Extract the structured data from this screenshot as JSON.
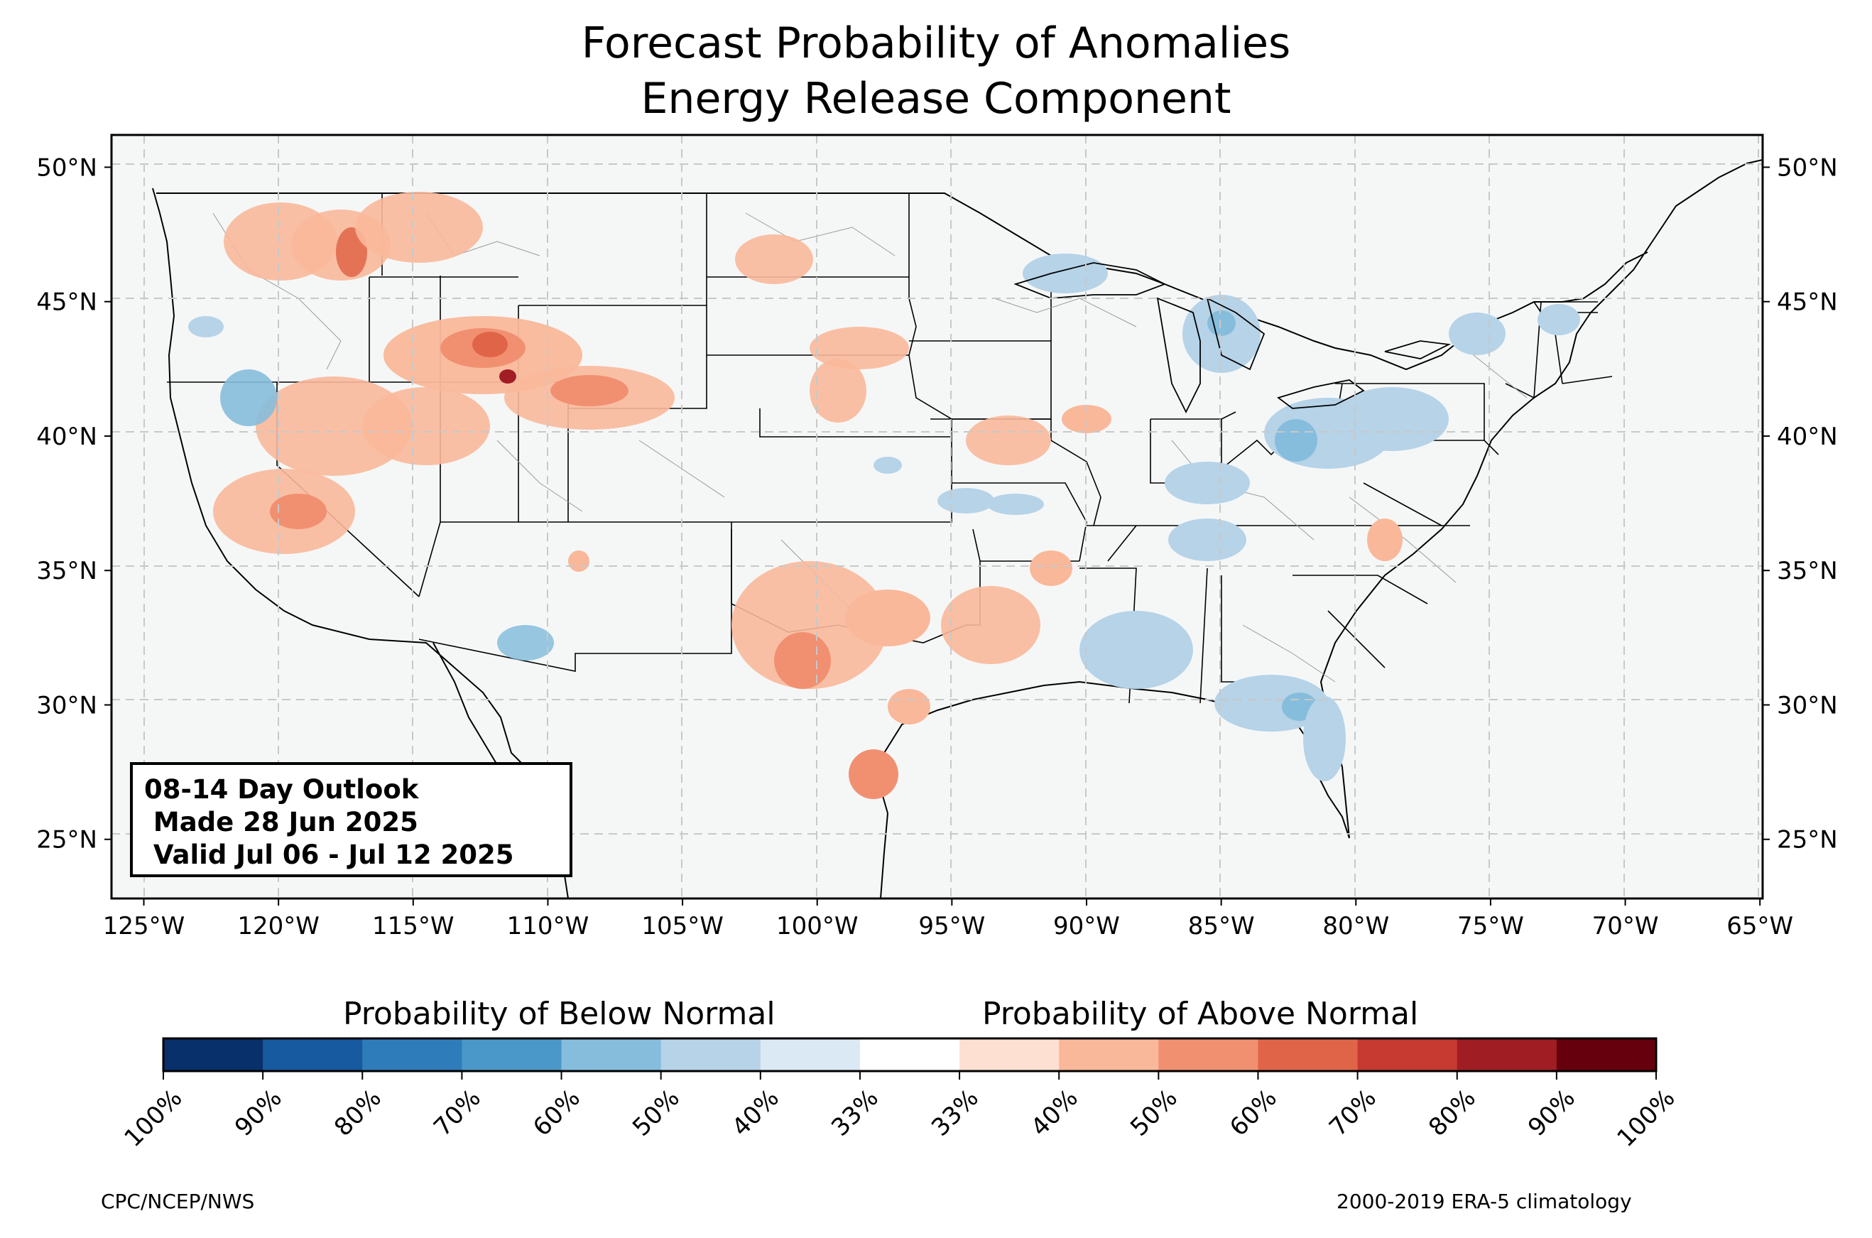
{
  "title": {
    "line1": "Forecast Probability of Anomalies",
    "line2": "Energy Release Component"
  },
  "axes": {
    "lat_labels": [
      "50°N",
      "45°N",
      "40°N",
      "35°N",
      "30°N",
      "25°N"
    ],
    "lat_values": [
      50,
      45,
      40,
      35,
      30,
      25
    ],
    "lon_labels": [
      "125°W",
      "120°W",
      "115°W",
      "110°W",
      "105°W",
      "100°W",
      "95°W",
      "90°W",
      "85°W",
      "80°W",
      "75°W",
      "70°W",
      "65°W"
    ],
    "lon_values": [
      -125,
      -120,
      -115,
      -110,
      -105,
      -100,
      -95,
      -90,
      -85,
      -80,
      -75,
      -70,
      -65
    ],
    "lon_range": [
      -126.2,
      -64.9
    ],
    "lat_range": [
      22.8,
      51.2
    ],
    "grid": "dashed"
  },
  "outlook_box": {
    "line1": "08-14 Day Outlook",
    "line2": " Made 28 Jun 2025",
    "line3": " Valid Jul 06 - Jul 12 2025"
  },
  "colorbar": {
    "below_label": "Probability of Below Normal",
    "above_label": "Probability of Above Normal",
    "tick_labels": [
      "100%",
      "90%",
      "80%",
      "70%",
      "60%",
      "50%",
      "40%",
      "33%",
      "33%",
      "40%",
      "50%",
      "60%",
      "70%",
      "80%",
      "90%",
      "100%"
    ],
    "colors": [
      "#08306b",
      "#175aa0",
      "#2f7cba",
      "#4a98c9",
      "#86bddc",
      "#b6d3e8",
      "#dbe9f5",
      "#ffffff",
      "#fde0d2",
      "#f9b89a",
      "#f19071",
      "#e06548",
      "#c63a32",
      "#a11d24",
      "#67000d"
    ]
  },
  "footer": {
    "left": "CPC/NCEP/NWS",
    "right": "2000-2019 ERA-5 climatology"
  },
  "colors": {
    "map_bg": "#f5f7f7",
    "above_light": "#f9b89a",
    "above_mid": "#f19071",
    "above_strong": "#e06548",
    "above_dark": "#c63a32",
    "above_darkest": "#a11d24",
    "below_light": "#b6d3e8",
    "below_mid": "#86bddc",
    "below_strong": "#4a98c9"
  }
}
